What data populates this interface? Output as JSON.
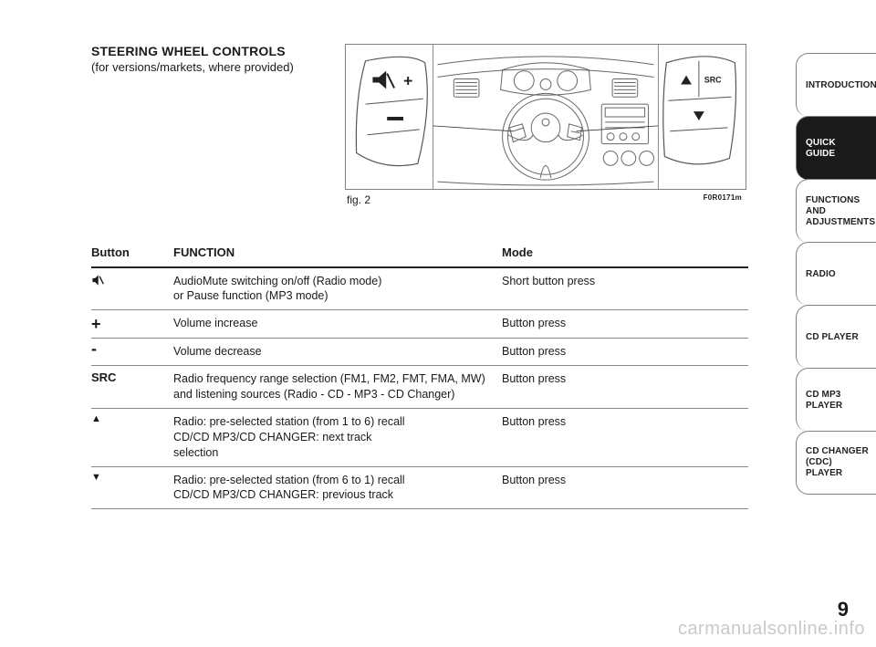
{
  "header": {
    "title": "STEERING WHEEL CONTROLS",
    "subtitle": "(for versions/markets, where provided)"
  },
  "figure": {
    "caption": "fig. 2",
    "code": "F0R0171m",
    "line_color": "#555555",
    "bg": "#ffffff",
    "left_btn_plus": "+",
    "left_btn_minus": "–",
    "right_btn_src": "SRC",
    "right_btn_mute": "mute"
  },
  "table": {
    "headers": {
      "button": "Button",
      "function": "FUNCTION",
      "mode": "Mode"
    },
    "rows": [
      {
        "icon": "mute",
        "label": "",
        "function": "AudioMute switching on/off (Radio mode)\nor Pause function (MP3 mode)",
        "mode": "Short button press"
      },
      {
        "icon": "plus",
        "label": "+",
        "function": "Volume increase",
        "mode": "Button press"
      },
      {
        "icon": "minus",
        "label": "-",
        "function": "Volume decrease",
        "mode": "Button press"
      },
      {
        "icon": "text",
        "label": "SRC",
        "function": "Radio frequency range selection (FM1, FM2, FMT, FMA, MW) and listening sources (Radio - CD - MP3 - CD Changer)",
        "mode": "Button press"
      },
      {
        "icon": "up",
        "label": "▲",
        "function": "Radio: pre-selected station (from 1 to 6) recall\nCD/CD MP3/CD  CHANGER: next track\nselection",
        "mode": "Button press"
      },
      {
        "icon": "down",
        "label": "▼",
        "function": "Radio: pre-selected station (from 6 to 1) recall\nCD/CD MP3/CD  CHANGER: previous track",
        "mode": "Button press"
      }
    ]
  },
  "tabs": [
    {
      "label": "INTRODUCTION",
      "active": false
    },
    {
      "label": "QUICK\nGUIDE",
      "active": true
    },
    {
      "label": "FUNCTIONS\nAND\nADJUSTMENTS",
      "active": false
    },
    {
      "label": "RADIO",
      "active": false
    },
    {
      "label": "CD PLAYER",
      "active": false
    },
    {
      "label": "CD MP3\nPLAYER",
      "active": false
    },
    {
      "label": "CD CHANGER\n(CDC) PLAYER",
      "active": false
    }
  ],
  "page_number": "9",
  "watermark": "carmanualsonline.info",
  "colors": {
    "text": "#1a1a1a",
    "border": "#808080",
    "watermark": "#c9c9c9",
    "tab_active_bg": "#1a1a1a",
    "tab_active_fg": "#ffffff"
  }
}
